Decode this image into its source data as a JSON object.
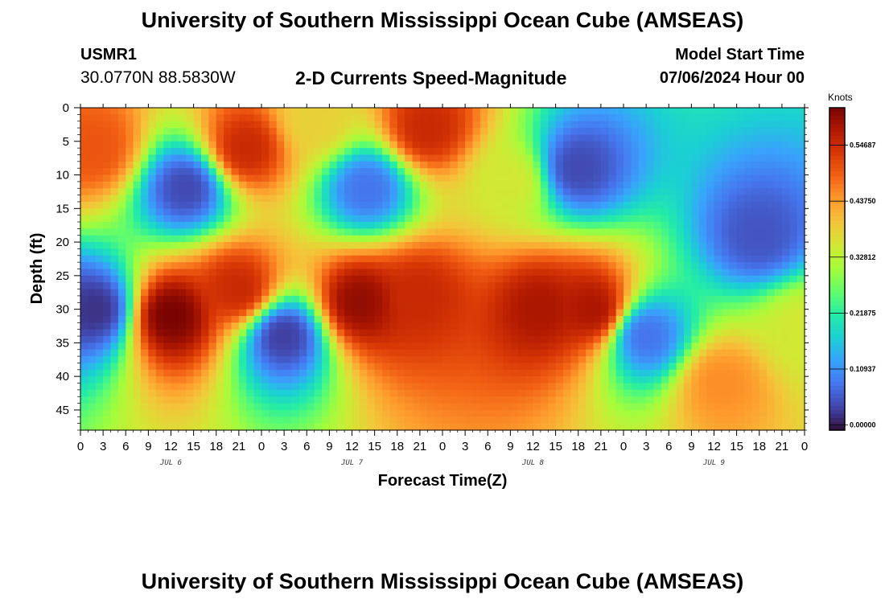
{
  "header": {
    "title": "University of Southern Mississippi Ocean Cube (AMSEAS)",
    "station": "USMR1",
    "coordinates": "30.0770N  88.5830W",
    "subtitle": "2-D Currents Speed-Magnitude",
    "model_start_label": "Model Start Time",
    "model_start_value": "07/06/2024 Hour 00"
  },
  "footer": {
    "title": "University of Southern Mississippi Ocean Cube (AMSEAS)"
  },
  "chart_data": {
    "type": "heatmap",
    "title": "2-D Currents Speed-Magnitude",
    "xlabel": "Forecast Time(Z)",
    "ylabel": "Depth (ft)",
    "x_range_hours": [
      0,
      96
    ],
    "x_tick_step_hours": 3,
    "x_tick_labels": [
      "0",
      "3",
      "6",
      "9",
      "12",
      "15",
      "18",
      "21",
      "0",
      "3",
      "6",
      "9",
      "12",
      "15",
      "18",
      "21",
      "0",
      "3",
      "6",
      "9",
      "12",
      "15",
      "18",
      "21",
      "0",
      "3",
      "6",
      "9",
      "12",
      "15",
      "18",
      "21",
      "0"
    ],
    "day_labels": [
      {
        "text": "JUL 6",
        "hour": 12
      },
      {
        "text": "JUL 7",
        "hour": 36
      },
      {
        "text": "JUL 8",
        "hour": 60
      },
      {
        "text": "JUL 9",
        "hour": 84
      }
    ],
    "y_range_ft": [
      0,
      48
    ],
    "y_ticks": [
      0,
      5,
      10,
      15,
      20,
      25,
      30,
      35,
      40,
      45
    ],
    "colorbar": {
      "unit": "Knots",
      "min": -0.01,
      "max": 0.62,
      "tick_values": [
        0.0,
        0.10937,
        0.21875,
        0.32812,
        0.4375,
        0.54687
      ],
      "tick_labels": [
        "0.00000",
        "0.10937",
        "0.21875",
        "0.32812",
        "0.43750",
        "0.54687"
      ]
    },
    "colormap": [
      "#30123b",
      "#4145ab",
      "#4675ed",
      "#39a2fc",
      "#1bcfd4",
      "#24eca6",
      "#61fc6c",
      "#a4fc3b",
      "#d1e834",
      "#f3c63a",
      "#fe9b2d",
      "#f36315",
      "#d93806",
      "#b11901",
      "#7a0402"
    ],
    "speed_features_knots": [
      {
        "desc": "surface jet",
        "hour": 2,
        "depth": 6,
        "speed": 0.5
      },
      {
        "desc": "surface jet",
        "hour": 22,
        "depth": 6,
        "speed": 0.55
      },
      {
        "desc": "surface jet",
        "hour": 31,
        "depth": 2,
        "speed": 0.38
      },
      {
        "desc": "surface jet",
        "hour": 46,
        "depth": 3,
        "speed": 0.55
      },
      {
        "desc": "surface band",
        "hour": 57,
        "depth": 11,
        "speed": 0.35
      },
      {
        "desc": "slack",
        "hour": 14,
        "depth": 12,
        "speed": 0.04
      },
      {
        "desc": "slack",
        "hour": 38,
        "depth": 12,
        "speed": 0.08
      },
      {
        "desc": "slack",
        "hour": 66,
        "depth": 9,
        "speed": 0.04
      },
      {
        "desc": "slack",
        "hour": 90,
        "depth": 19,
        "speed": 0.05
      },
      {
        "desc": "subsurface jet",
        "hour": 12,
        "depth": 31,
        "speed": 0.62
      },
      {
        "desc": "subsurface jet",
        "hour": 21,
        "depth": 27,
        "speed": 0.55
      },
      {
        "desc": "subsurface jet",
        "hour": 37,
        "depth": 29,
        "speed": 0.6
      },
      {
        "desc": "subsurface jet",
        "hour": 45,
        "depth": 28,
        "speed": 0.55
      },
      {
        "desc": "subsurface jet",
        "hour": 61,
        "depth": 30,
        "speed": 0.58
      },
      {
        "desc": "subsurface jet",
        "hour": 68,
        "depth": 30,
        "speed": 0.58
      },
      {
        "desc": "subsurface pocket",
        "hour": 85,
        "depth": 41,
        "speed": 0.45
      },
      {
        "desc": "subsurface pocket",
        "hour": 96,
        "depth": 33,
        "speed": 0.35
      },
      {
        "desc": "deep slack",
        "hour": 2,
        "depth": 30,
        "speed": 0.02
      },
      {
        "desc": "deep slack",
        "hour": 27,
        "depth": 34,
        "speed": 0.03
      },
      {
        "desc": "deep slack",
        "hour": 75,
        "depth": 34,
        "speed": 0.08
      }
    ]
  }
}
